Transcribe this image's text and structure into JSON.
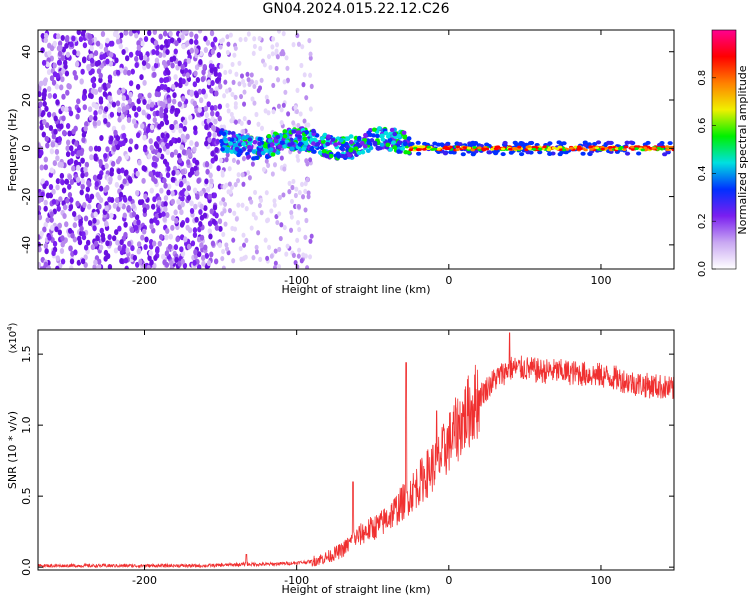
{
  "title": "GN04.2024.015.22.12.C26",
  "chart_data": [
    {
      "type": "heatmap",
      "title": "GN04.2024.015.22.12.C26",
      "xlabel": "Height of straight line (km)",
      "ylabel": "Frequency (Hz)",
      "xlim": [
        -270,
        148
      ],
      "ylim": [
        -50,
        49
      ],
      "xticks": [
        -200,
        -100,
        0,
        100
      ],
      "yticks": [
        -40,
        -20,
        0,
        20,
        40
      ],
      "colorbar": {
        "label": "Normalized spectral amplitude",
        "range": [
          0.0,
          1.0
        ],
        "ticks": [
          0.0,
          0.2,
          0.4,
          0.6,
          0.8
        ],
        "tick_labels": [
          "0.0",
          "0.2",
          "0.4",
          "0.6",
          "0.8"
        ],
        "colors": [
          "#ffffff",
          "#c9a8f2",
          "#7a1ff0",
          "#0030ff",
          "#00e0e0",
          "#00f000",
          "#f0f000",
          "#ff8000",
          "#ff0000",
          "#ff0090"
        ]
      },
      "regions": [
        {
          "x_range": [
            -270,
            -150
          ],
          "freq_range": [
            -50,
            49
          ],
          "amplitude": "0.0-0.2",
          "description_value": "broadband noise"
        },
        {
          "x_range": [
            -150,
            -90
          ],
          "freq_range": [
            -50,
            49
          ],
          "amplitude": "0.0-0.1"
        },
        {
          "x_range": [
            -150,
            -25
          ],
          "freq_center": 2,
          "freq_halfwidth": 4,
          "amplitude": "0.2-0.5"
        },
        {
          "x_range": [
            -25,
            148
          ],
          "freq_center": 0,
          "freq_halfwidth": 2,
          "amplitude": "0.6-1.0"
        }
      ]
    },
    {
      "type": "line",
      "xlabel": "Height of straight line (km)",
      "ylabel": "SNR (10 * v/v)",
      "yscale_note": "(x10",
      "yscale_exp": "4",
      "color": "#f03030",
      "xlim": [
        -270,
        148
      ],
      "ylim": [
        -0.02,
        1.67
      ],
      "xticks": [
        -200,
        -100,
        0,
        100
      ],
      "yticks": [
        0.0,
        0.5,
        1.0,
        1.5
      ],
      "ytick_labels": [
        "0.0",
        "0.5",
        "1.0",
        "1.5"
      ],
      "x": [
        -270,
        -240,
        -200,
        -160,
        -135,
        -120,
        -100,
        -90,
        -80,
        -70,
        -62,
        -55,
        -45,
        -35,
        -25,
        -15,
        -5,
        0,
        10,
        20,
        30,
        40,
        50,
        60,
        70,
        80,
        90,
        100,
        110,
        120,
        130,
        140,
        148
      ],
      "y": [
        0.01,
        0.01,
        0.01,
        0.01,
        0.02,
        0.02,
        0.03,
        0.04,
        0.07,
        0.12,
        0.2,
        0.25,
        0.3,
        0.4,
        0.52,
        0.65,
        0.78,
        0.88,
        1.05,
        1.2,
        1.32,
        1.4,
        1.4,
        1.38,
        1.38,
        1.37,
        1.36,
        1.35,
        1.33,
        1.3,
        1.28,
        1.27,
        1.25
      ],
      "spikes": [
        {
          "x": -133,
          "y": 0.09
        },
        {
          "x": -63,
          "y": 0.6
        },
        {
          "x": -28,
          "y": 1.44
        },
        {
          "x": -8,
          "y": 1.1
        },
        {
          "x": 40,
          "y": 1.65
        }
      ]
    }
  ]
}
